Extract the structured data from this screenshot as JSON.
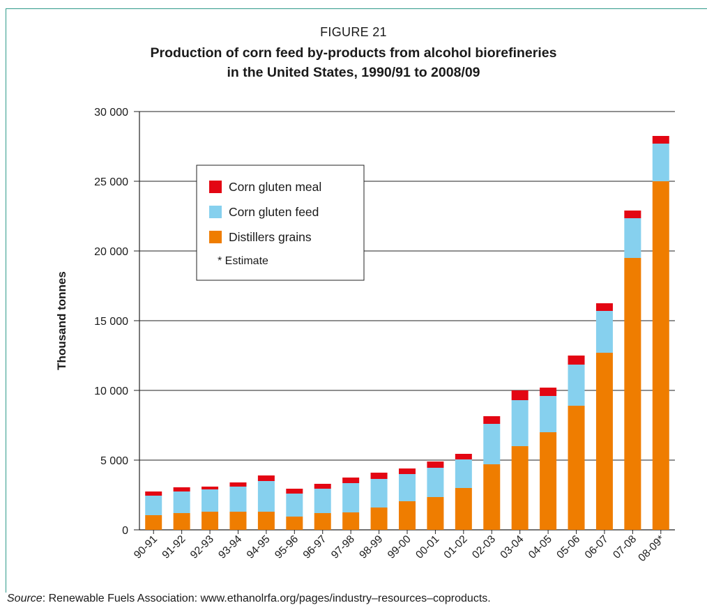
{
  "figure": {
    "label": "FIGURE 21",
    "title_line1": "Production of corn feed by-products from alcohol biorefineries",
    "title_line2": "in the United States, 1990/91 to 2008/09"
  },
  "source": {
    "prefix": "Source",
    "text": ": Renewable Fuels Association: www.ethanolrfa.org/pages/industry–resources–coproducts."
  },
  "legend_note": "* Estimate",
  "colors": {
    "corn_gluten_meal": "#e30613",
    "corn_gluten_feed": "#86d0ee",
    "distillers_grains": "#ef7d00",
    "grid": "#222222"
  },
  "chart_data": {
    "type": "bar",
    "stacked": true,
    "ylabel": "Thousand tonnes",
    "xlabel": "",
    "ylim": [
      0,
      30000
    ],
    "yticks": [
      0,
      5000,
      10000,
      15000,
      20000,
      25000,
      30000
    ],
    "ytick_labels": [
      "0",
      "5 000",
      "10 000",
      "15 000",
      "20 000",
      "25 000",
      "30 000"
    ],
    "grid": true,
    "legend_position": "top-left",
    "categories": [
      "90-91",
      "91-92",
      "92-93",
      "93-94",
      "94-95",
      "95-96",
      "96-97",
      "97-98",
      "98-99",
      "99-00",
      "00-01",
      "01-02",
      "02-03",
      "03-04",
      "04-05",
      "05-06",
      "06-07",
      "07-08",
      "08-09*"
    ],
    "series": [
      {
        "name": "Distillers grains",
        "color": "#ef7d00",
        "values": [
          1050,
          1200,
          1300,
          1300,
          1300,
          950,
          1200,
          1250,
          1600,
          2050,
          2350,
          3000,
          4700,
          6000,
          7000,
          8900,
          12700,
          19500,
          25000
        ]
      },
      {
        "name": "Corn gluten feed",
        "color": "#86d0ee",
        "values": [
          1400,
          1550,
          1600,
          1800,
          2200,
          1650,
          1750,
          2100,
          2050,
          1950,
          2100,
          2050,
          2900,
          3300,
          2600,
          2950,
          3000,
          2850,
          2700
        ]
      },
      {
        "name": "Corn gluten meal",
        "color": "#e30613",
        "values": [
          300,
          300,
          200,
          300,
          400,
          350,
          350,
          400,
          450,
          400,
          450,
          400,
          550,
          700,
          600,
          650,
          550,
          550,
          550
        ]
      }
    ],
    "legend_order": [
      "Corn gluten meal",
      "Corn gluten feed",
      "Distillers grains"
    ]
  }
}
